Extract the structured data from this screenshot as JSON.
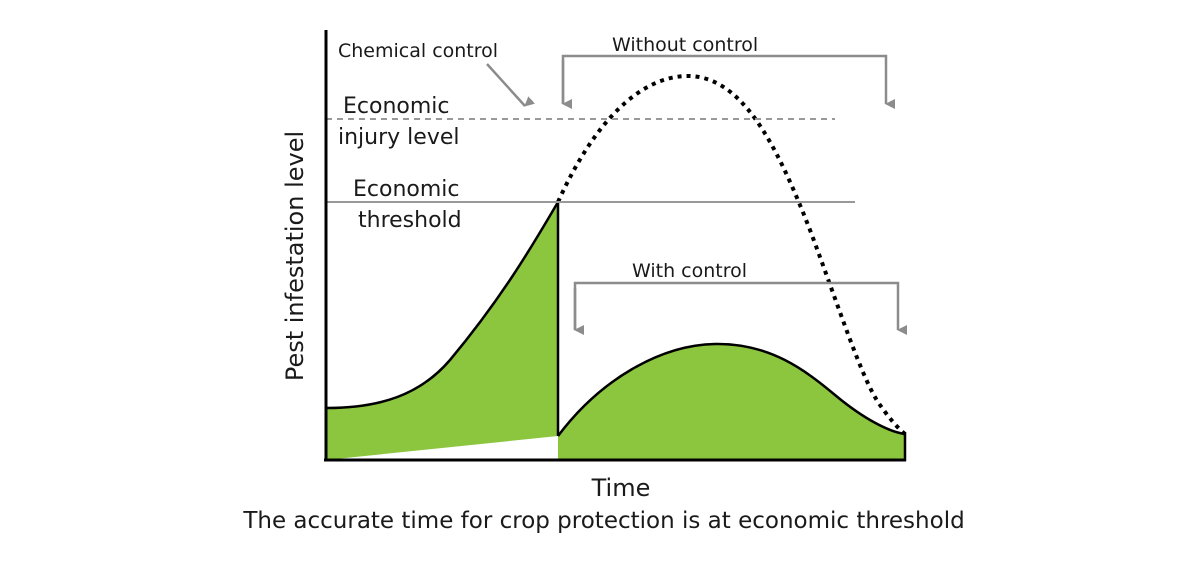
{
  "diagram": {
    "labels": {
      "chemical_control": "Chemical control",
      "without_control": "Without control",
      "with_control": "With control",
      "economic_injury_level_line1": "Economic",
      "economic_injury_level_line2": "injury level",
      "economic_threshold_line1": "Economic",
      "economic_threshold_line2": "threshold",
      "y_axis": "Pest infestation level",
      "x_axis": "Time"
    },
    "caption": "The accurate time for crop protection is at economic threshold",
    "colors": {
      "fill": "#8cc63f",
      "curve": "#000000",
      "reference_lines": "#999999",
      "arrows": "#8c8c8c",
      "axes": "#000000"
    }
  }
}
